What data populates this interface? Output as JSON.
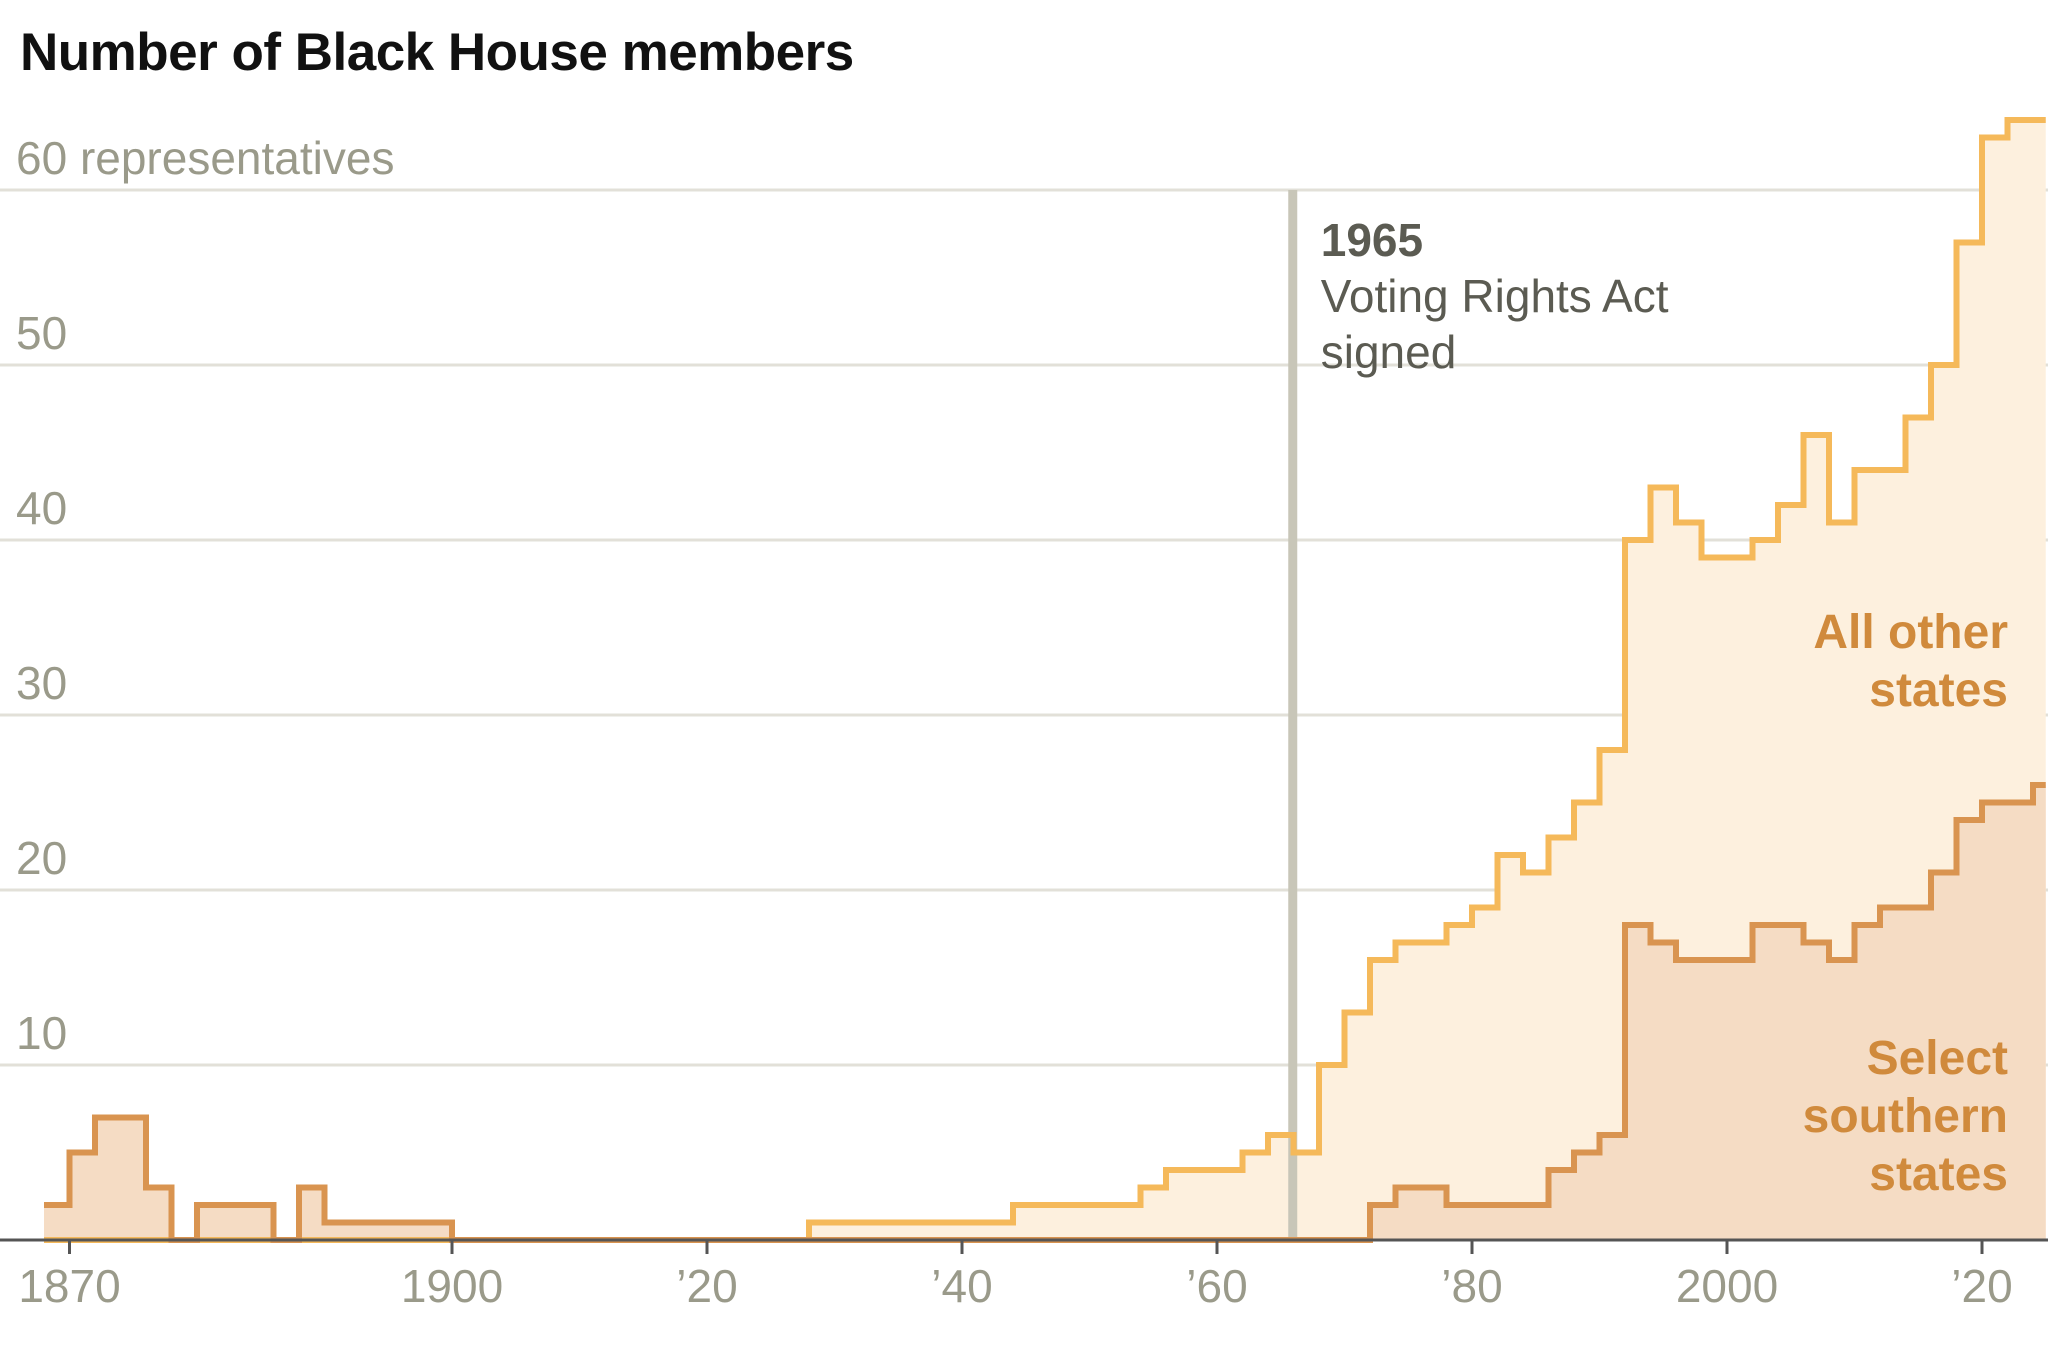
{
  "chart_data": {
    "type": "area",
    "title": "Number of Black House members",
    "ylabel": "representatives",
    "ylim": [
      0,
      60
    ],
    "xlim": [
      1868,
      2025
    ],
    "y_ticks": [
      {
        "value": 60,
        "label": "60 representatives"
      },
      {
        "value": 50,
        "label": "50"
      },
      {
        "value": 40,
        "label": "40"
      },
      {
        "value": 30,
        "label": "30"
      },
      {
        "value": 20,
        "label": "20"
      },
      {
        "value": 10,
        "label": "10"
      }
    ],
    "x_ticks": [
      {
        "value": 1870,
        "label": "1870"
      },
      {
        "value": 1900,
        "label": "1900"
      },
      {
        "value": 1920,
        "label": "’20"
      },
      {
        "value": 1940,
        "label": "’40"
      },
      {
        "value": 1960,
        "label": "’60"
      },
      {
        "value": 1980,
        "label": "’80"
      },
      {
        "value": 2000,
        "label": "2000"
      },
      {
        "value": 2020,
        "label": "’20"
      }
    ],
    "grid": true,
    "series": [
      {
        "name": "All other states",
        "label_lines": [
          "All other",
          "states"
        ],
        "color": "#f5b95a",
        "fill": "#fdf0de",
        "steps": [
          [
            1868,
            0
          ],
          [
            1928,
            1
          ],
          [
            1944,
            2
          ],
          [
            1954,
            3
          ],
          [
            1956,
            4
          ],
          [
            1962,
            5
          ],
          [
            1964,
            6
          ],
          [
            1966,
            5
          ],
          [
            1968,
            10
          ],
          [
            1970,
            13
          ],
          [
            1972,
            16
          ],
          [
            1974,
            17
          ],
          [
            1978,
            18
          ],
          [
            1980,
            19
          ],
          [
            1982,
            22
          ],
          [
            1984,
            21
          ],
          [
            1986,
            23
          ],
          [
            1988,
            25
          ],
          [
            1990,
            28
          ],
          [
            1992,
            40
          ],
          [
            1994,
            43
          ],
          [
            1996,
            41
          ],
          [
            1998,
            39
          ],
          [
            2002,
            40
          ],
          [
            2004,
            42
          ],
          [
            2006,
            46
          ],
          [
            2008,
            41
          ],
          [
            2010,
            44
          ],
          [
            2014,
            47
          ],
          [
            2016,
            50
          ],
          [
            2018,
            57
          ],
          [
            2020,
            63
          ],
          [
            2022,
            64
          ]
        ]
      },
      {
        "name": "Select southern states",
        "label_lines": [
          "Select",
          "southern",
          "states"
        ],
        "color": "#d99450",
        "fill": "#f5dcc4",
        "steps": [
          [
            1868,
            2
          ],
          [
            1870,
            5
          ],
          [
            1872,
            7
          ],
          [
            1876,
            3
          ],
          [
            1878,
            0
          ],
          [
            1880,
            2
          ],
          [
            1886,
            0
          ],
          [
            1888,
            3
          ],
          [
            1890,
            1
          ],
          [
            1900,
            0
          ],
          [
            1970,
            0
          ],
          [
            1972,
            2
          ],
          [
            1974,
            3
          ],
          [
            1978,
            2
          ],
          [
            1986,
            4
          ],
          [
            1988,
            5
          ],
          [
            1990,
            6
          ],
          [
            1992,
            18
          ],
          [
            1994,
            17
          ],
          [
            1996,
            16
          ],
          [
            2002,
            18
          ],
          [
            2006,
            17
          ],
          [
            2008,
            16
          ],
          [
            2010,
            18
          ],
          [
            2012,
            19
          ],
          [
            2016,
            21
          ],
          [
            2018,
            24
          ],
          [
            2020,
            25
          ],
          [
            2024,
            26
          ]
        ]
      }
    ],
    "annotations": [
      {
        "x": 1965,
        "year": "1965",
        "lines": [
          "Voting Rights Act",
          "signed"
        ],
        "color": "#c8c6b8"
      }
    ]
  }
}
